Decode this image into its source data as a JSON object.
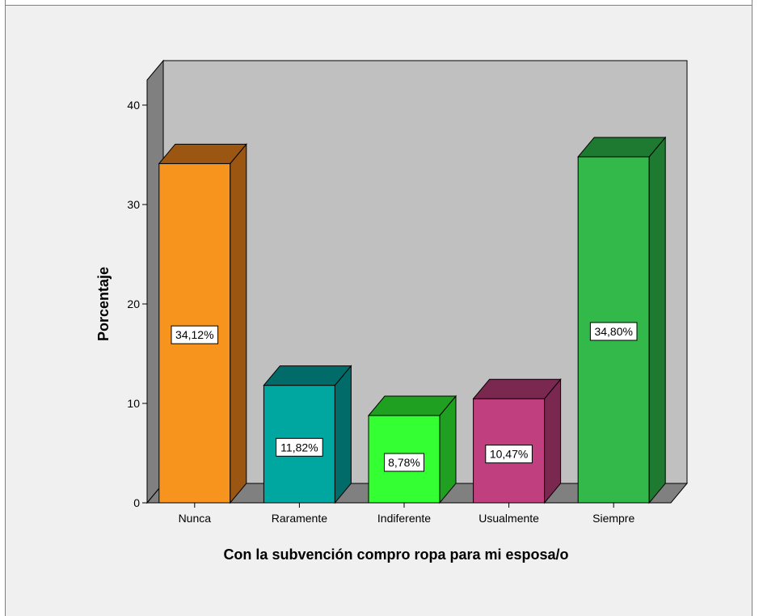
{
  "chart_data": {
    "type": "bar",
    "categories": [
      "Nunca",
      "Raramente",
      "Indiferente",
      "Usualmente",
      "Siempre"
    ],
    "values": [
      34.12,
      11.82,
      8.78,
      10.47,
      34.8
    ],
    "data_labels": [
      "34,12%",
      "11,82%",
      "8,78%",
      "10,47%",
      "34,80%"
    ],
    "title": "",
    "xlabel": "Con la subvención compro ropa para mi esposa/o",
    "ylabel": "Porcentaje",
    "ylim": [
      0,
      40
    ],
    "yticks": [
      "0",
      "10",
      "20",
      "30",
      "40"
    ],
    "grid": false,
    "colors": {
      "bars": [
        "#f7941d",
        "#00a6a0",
        "#33ff33",
        "#c0407f",
        "#33b84a"
      ],
      "bar_tops": [
        "#9b5612",
        "#006b68",
        "#20a020",
        "#7b2850",
        "#1f7a31"
      ],
      "bar_sides": [
        "#9b5612",
        "#006b68",
        "#20a020",
        "#7b2850",
        "#1f7a31"
      ],
      "wall_back": "#c0c0c0",
      "wall_side": "#808080",
      "floor": "#808080",
      "background": "#f0f0f0"
    }
  }
}
